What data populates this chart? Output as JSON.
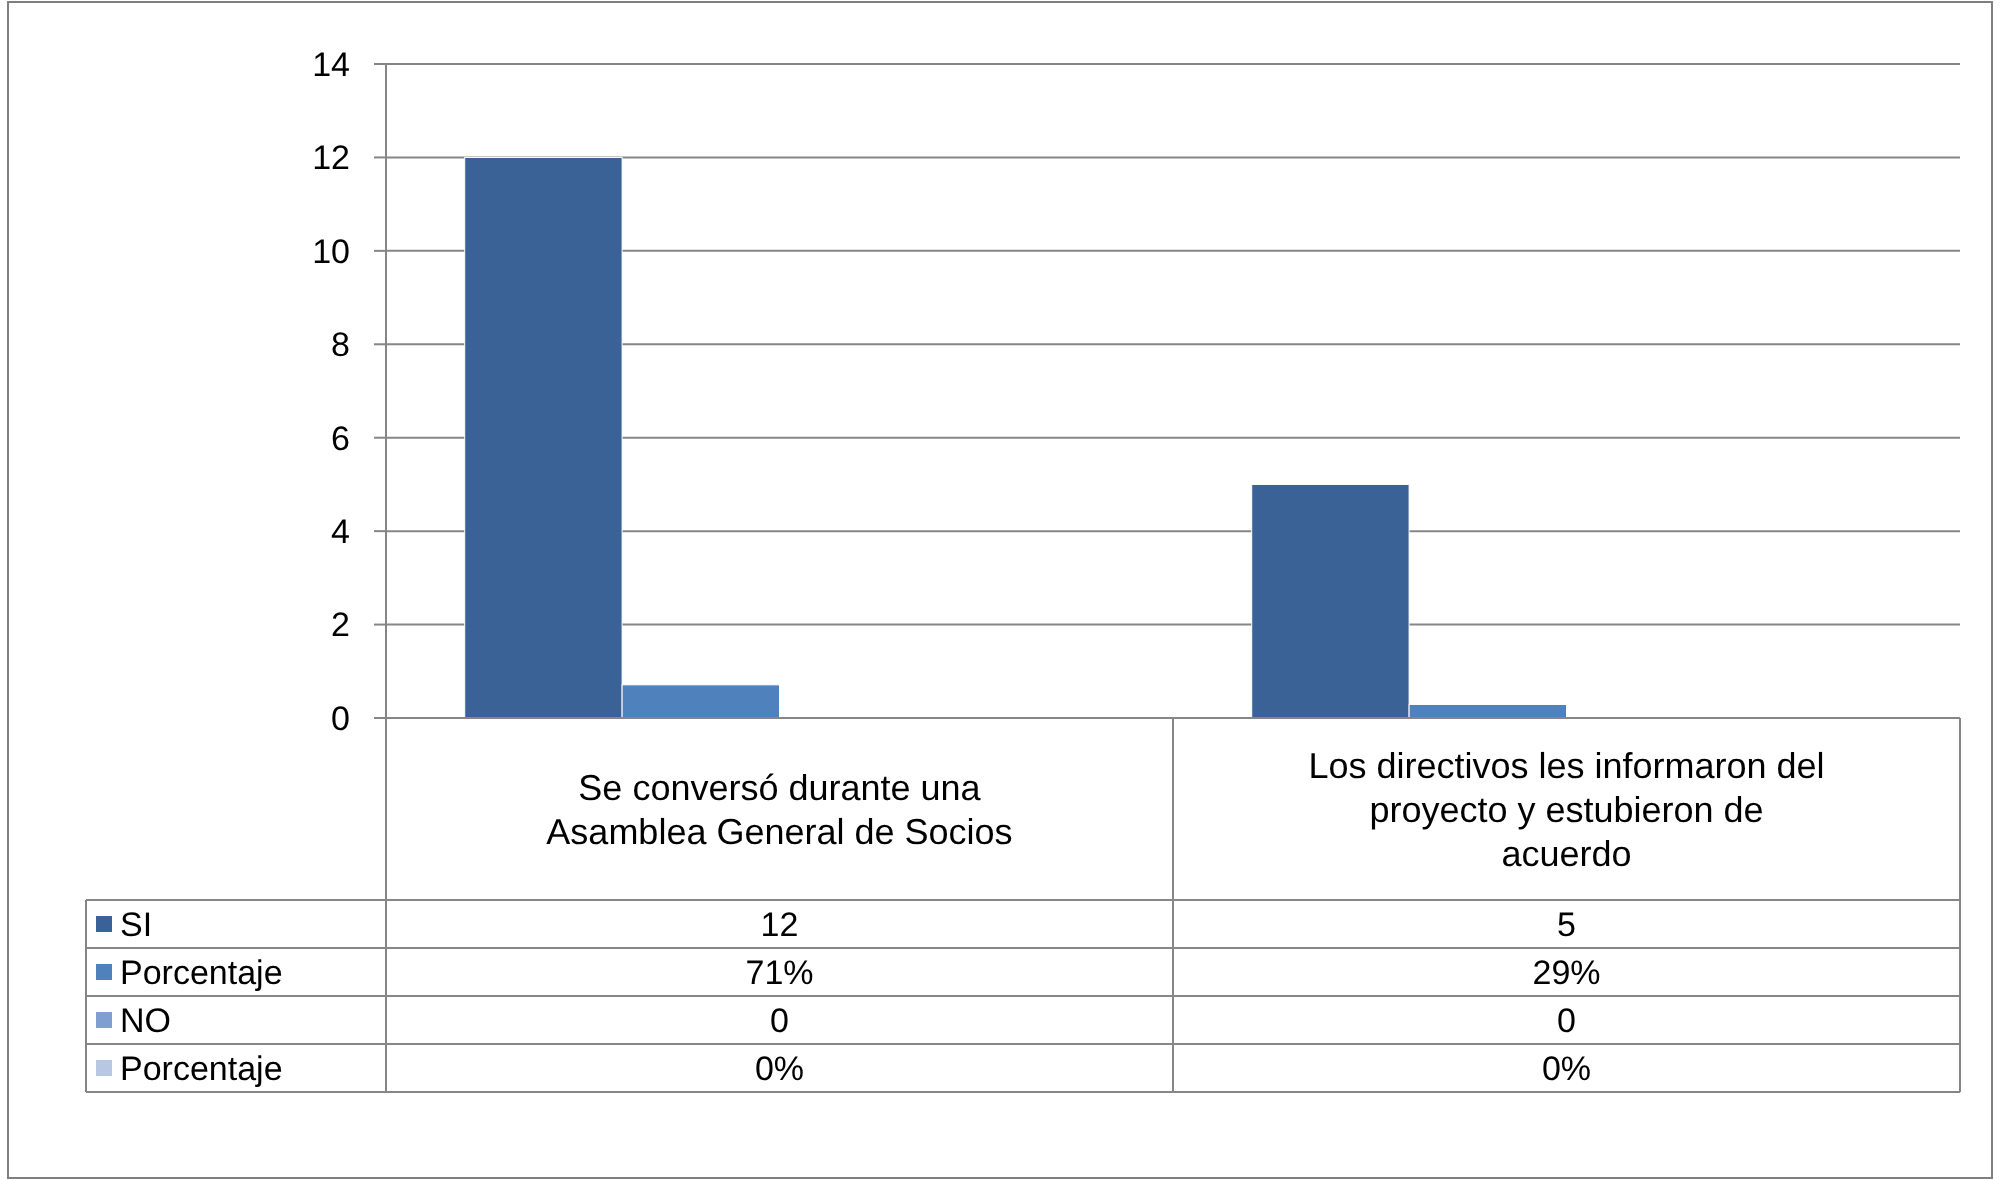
{
  "chart_data": {
    "type": "bar",
    "categories": [
      "Se conversó durante una Asamblea General de Socios",
      "Los directivos les informaron del proyecto y estubieron de acuerdo"
    ],
    "series": [
      {
        "name": "SI",
        "color": "#3b6296",
        "values": [
          12,
          5
        ],
        "value_labels": [
          "12",
          "5"
        ]
      },
      {
        "name": "Porcentaje",
        "color": "#4f81bd",
        "values": [
          0.71,
          0.29
        ],
        "value_labels": [
          "71%",
          "29%"
        ]
      },
      {
        "name": "NO",
        "color": "#7f9fd0",
        "values": [
          0,
          0
        ],
        "value_labels": [
          "0",
          "0"
        ]
      },
      {
        "name": "Porcentaje",
        "color": "#b8c8e4",
        "values": [
          0,
          0
        ],
        "value_labels": [
          "0%",
          "0%"
        ]
      }
    ],
    "ylim": [
      0,
      14
    ],
    "yticks": [
      0,
      2,
      4,
      6,
      8,
      10,
      12,
      14
    ],
    "grid": "y",
    "legend": "bottom"
  }
}
